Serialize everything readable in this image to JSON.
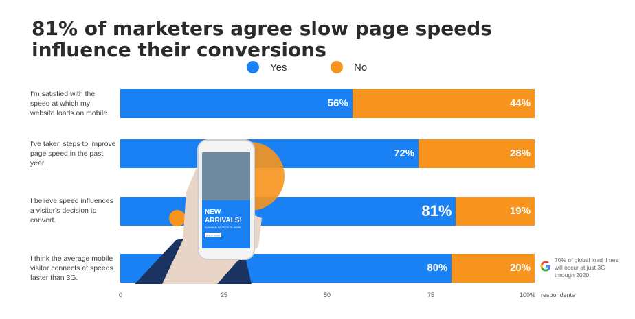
{
  "colors": {
    "yes": "#1a81f4",
    "no": "#f7941d"
  },
  "legend": [
    {
      "label": "Yes",
      "color": "#1a81f4"
    },
    {
      "label": "No",
      "color": "#f7941d"
    }
  ],
  "chart_data": {
    "type": "bar",
    "orientation": "horizontal",
    "stacked": true,
    "title": "81% of marketers agree slow page speeds influence their conversions",
    "categories": [
      "I'm satisfied with the speed at which my website loads on mobile.",
      "I've taken steps to improve page speed in the past year.",
      "I believe speed influences a visitor's decision to convert.",
      "I think the average mobile visitor connects at speeds faster than 3G."
    ],
    "series": [
      {
        "name": "Yes",
        "values": [
          56,
          72,
          81,
          80
        ],
        "labels": [
          "56%",
          "72%",
          "81%",
          "80%"
        ]
      },
      {
        "name": "No",
        "values": [
          44,
          28,
          19,
          20
        ],
        "labels": [
          "44%",
          "28%",
          "19%",
          "20%"
        ]
      }
    ],
    "xticks": [
      "0",
      "25",
      "50",
      "75",
      "100%"
    ],
    "xlabel": "respondents",
    "xlim": [
      0,
      100
    ],
    "legend_position": "top",
    "annotation": "70% of global load times will occur at just 3G through 2020."
  },
  "phone_ad": {
    "headline": "NEW ARRIVALS!",
    "subline": "SUMMER SEASON IS HERE",
    "button": "SHOP NOW"
  }
}
